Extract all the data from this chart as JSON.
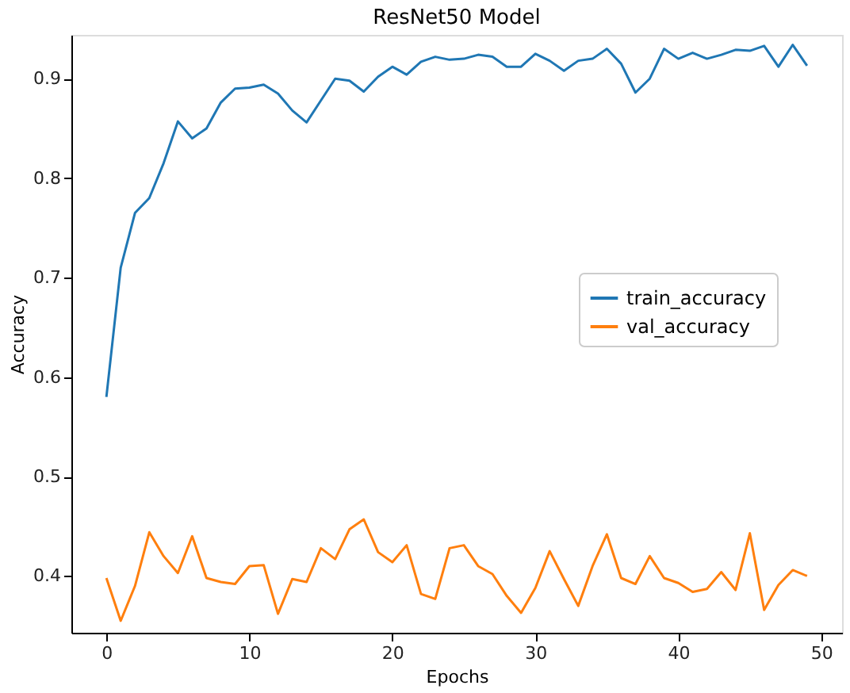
{
  "chart_data": {
    "type": "line",
    "title": "ResNet50 Model",
    "xlabel": "Epochs",
    "ylabel": "Accuracy",
    "x": [
      0,
      1,
      2,
      3,
      4,
      5,
      6,
      7,
      8,
      9,
      10,
      11,
      12,
      13,
      14,
      15,
      16,
      17,
      18,
      19,
      20,
      21,
      22,
      23,
      24,
      25,
      26,
      27,
      28,
      29,
      30,
      31,
      32,
      33,
      34,
      35,
      36,
      37,
      38,
      39,
      40,
      41,
      42,
      43,
      44,
      45,
      46,
      47,
      48,
      49
    ],
    "series": [
      {
        "name": "train_accuracy",
        "color": "#1f77b4",
        "values": [
          0.58,
          0.71,
          0.765,
          0.78,
          0.815,
          0.857,
          0.84,
          0.85,
          0.876,
          0.89,
          0.891,
          0.894,
          0.885,
          0.868,
          0.856,
          0.878,
          0.9,
          0.898,
          0.887,
          0.902,
          0.912,
          0.904,
          0.917,
          0.922,
          0.919,
          0.92,
          0.924,
          0.922,
          0.912,
          0.912,
          0.925,
          0.918,
          0.908,
          0.918,
          0.92,
          0.93,
          0.915,
          0.886,
          0.9,
          0.93,
          0.92,
          0.926,
          0.92,
          0.924,
          0.929,
          0.928,
          0.933,
          0.912,
          0.934,
          0.913
        ]
      },
      {
        "name": "val_accuracy",
        "color": "#ff7f0e",
        "values": [
          0.398,
          0.355,
          0.39,
          0.444,
          0.42,
          0.403,
          0.44,
          0.398,
          0.394,
          0.392,
          0.41,
          0.411,
          0.362,
          0.397,
          0.394,
          0.428,
          0.417,
          0.447,
          0.457,
          0.424,
          0.414,
          0.431,
          0.382,
          0.377,
          0.428,
          0.431,
          0.41,
          0.402,
          0.38,
          0.363,
          0.388,
          0.425,
          0.397,
          0.37,
          0.41,
          0.442,
          0.398,
          0.392,
          0.42,
          0.398,
          0.393,
          0.384,
          0.387,
          0.404,
          0.386,
          0.443,
          0.366,
          0.391,
          0.406,
          0.4
        ]
      }
    ],
    "xlim": [
      -2.45,
      51.45
    ],
    "xticks": [
      0,
      10,
      20,
      30,
      40,
      50
    ],
    "ylim": [
      0.343,
      0.944
    ],
    "yticks": [
      0.4,
      0.5,
      0.6,
      0.7,
      0.8,
      0.9
    ],
    "grid": false,
    "legend": "right",
    "line_style": "solid",
    "marker": "none"
  }
}
